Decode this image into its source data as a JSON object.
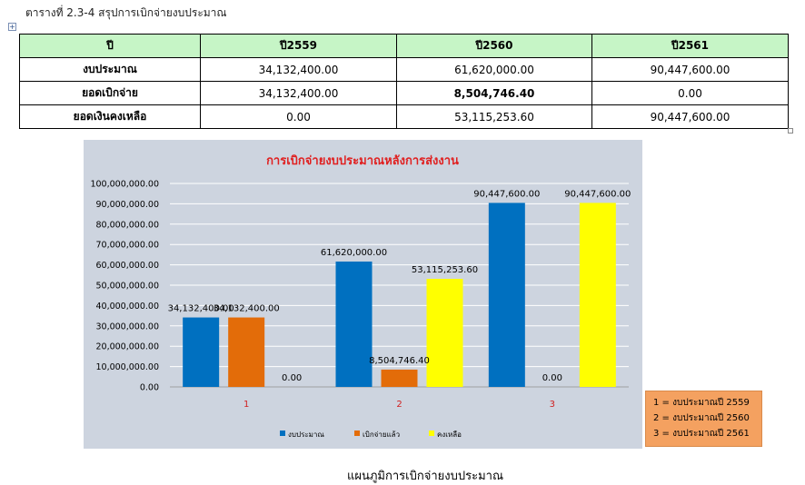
{
  "caption": "ตารางที่ 2.3-4 สรุปการเบิกจ่ายงบประมาณ",
  "table": {
    "headers": [
      "ปี",
      "ปี2559",
      "ปี2560",
      "ปี2561"
    ],
    "rows": [
      {
        "label": "งบประมาณ",
        "values": [
          "34,132,400.00",
          "61,620,000.00",
          "90,447,600.00"
        ]
      },
      {
        "label": "ยอดเบิกจ่าย",
        "values": [
          "34,132,400.00",
          "8,504,746.40",
          "0.00"
        ]
      },
      {
        "label": "ยอดเงินคงเหลือ",
        "values": [
          "0.00",
          "53,115,253.60",
          "90,447,600.00"
        ]
      }
    ]
  },
  "chart_data": {
    "type": "bar",
    "title": "การเบิกจ่ายงบประมาณหลังการส่งงาน",
    "categories": [
      "1",
      "2",
      "3"
    ],
    "ylim": [
      0,
      100000000
    ],
    "yticks": [
      "0.00",
      "10,000,000.00",
      "20,000,000.00",
      "30,000,000.00",
      "40,000,000.00",
      "50,000,000.00",
      "60,000,000.00",
      "70,000,000.00",
      "80,000,000.00",
      "90,000,000.00",
      "100,000,000.00"
    ],
    "grid": true,
    "legend_position": "bottom",
    "series": [
      {
        "name": "งบประมาณ",
        "color": "#0070c0",
        "values": [
          34132400,
          61620000,
          90447600
        ],
        "labels": [
          "34,132,400.00",
          "61,620,000.00",
          "90,447,600.00"
        ]
      },
      {
        "name": "เบิกจ่ายแล้ว",
        "color": "#e36c09",
        "values": [
          34132400,
          8504746.4,
          0
        ],
        "labels": [
          "34,132,400.00",
          "8,504,746.40",
          "0.00"
        ]
      },
      {
        "name": "คงเหลือ",
        "color": "#ffff00",
        "values": [
          0,
          53115253.6,
          90447600
        ],
        "labels": [
          "0.00",
          "53,115,253.60",
          "90,447,600.00"
        ]
      }
    ]
  },
  "year_legend": [
    "1 = งบประมาณปี 2559",
    "2 = งบประมาณปี 2560",
    "3 = งบประมาณปี 2561"
  ],
  "figure_caption": "แผนภูมิการเบิกจ่ายงบประมาณ"
}
